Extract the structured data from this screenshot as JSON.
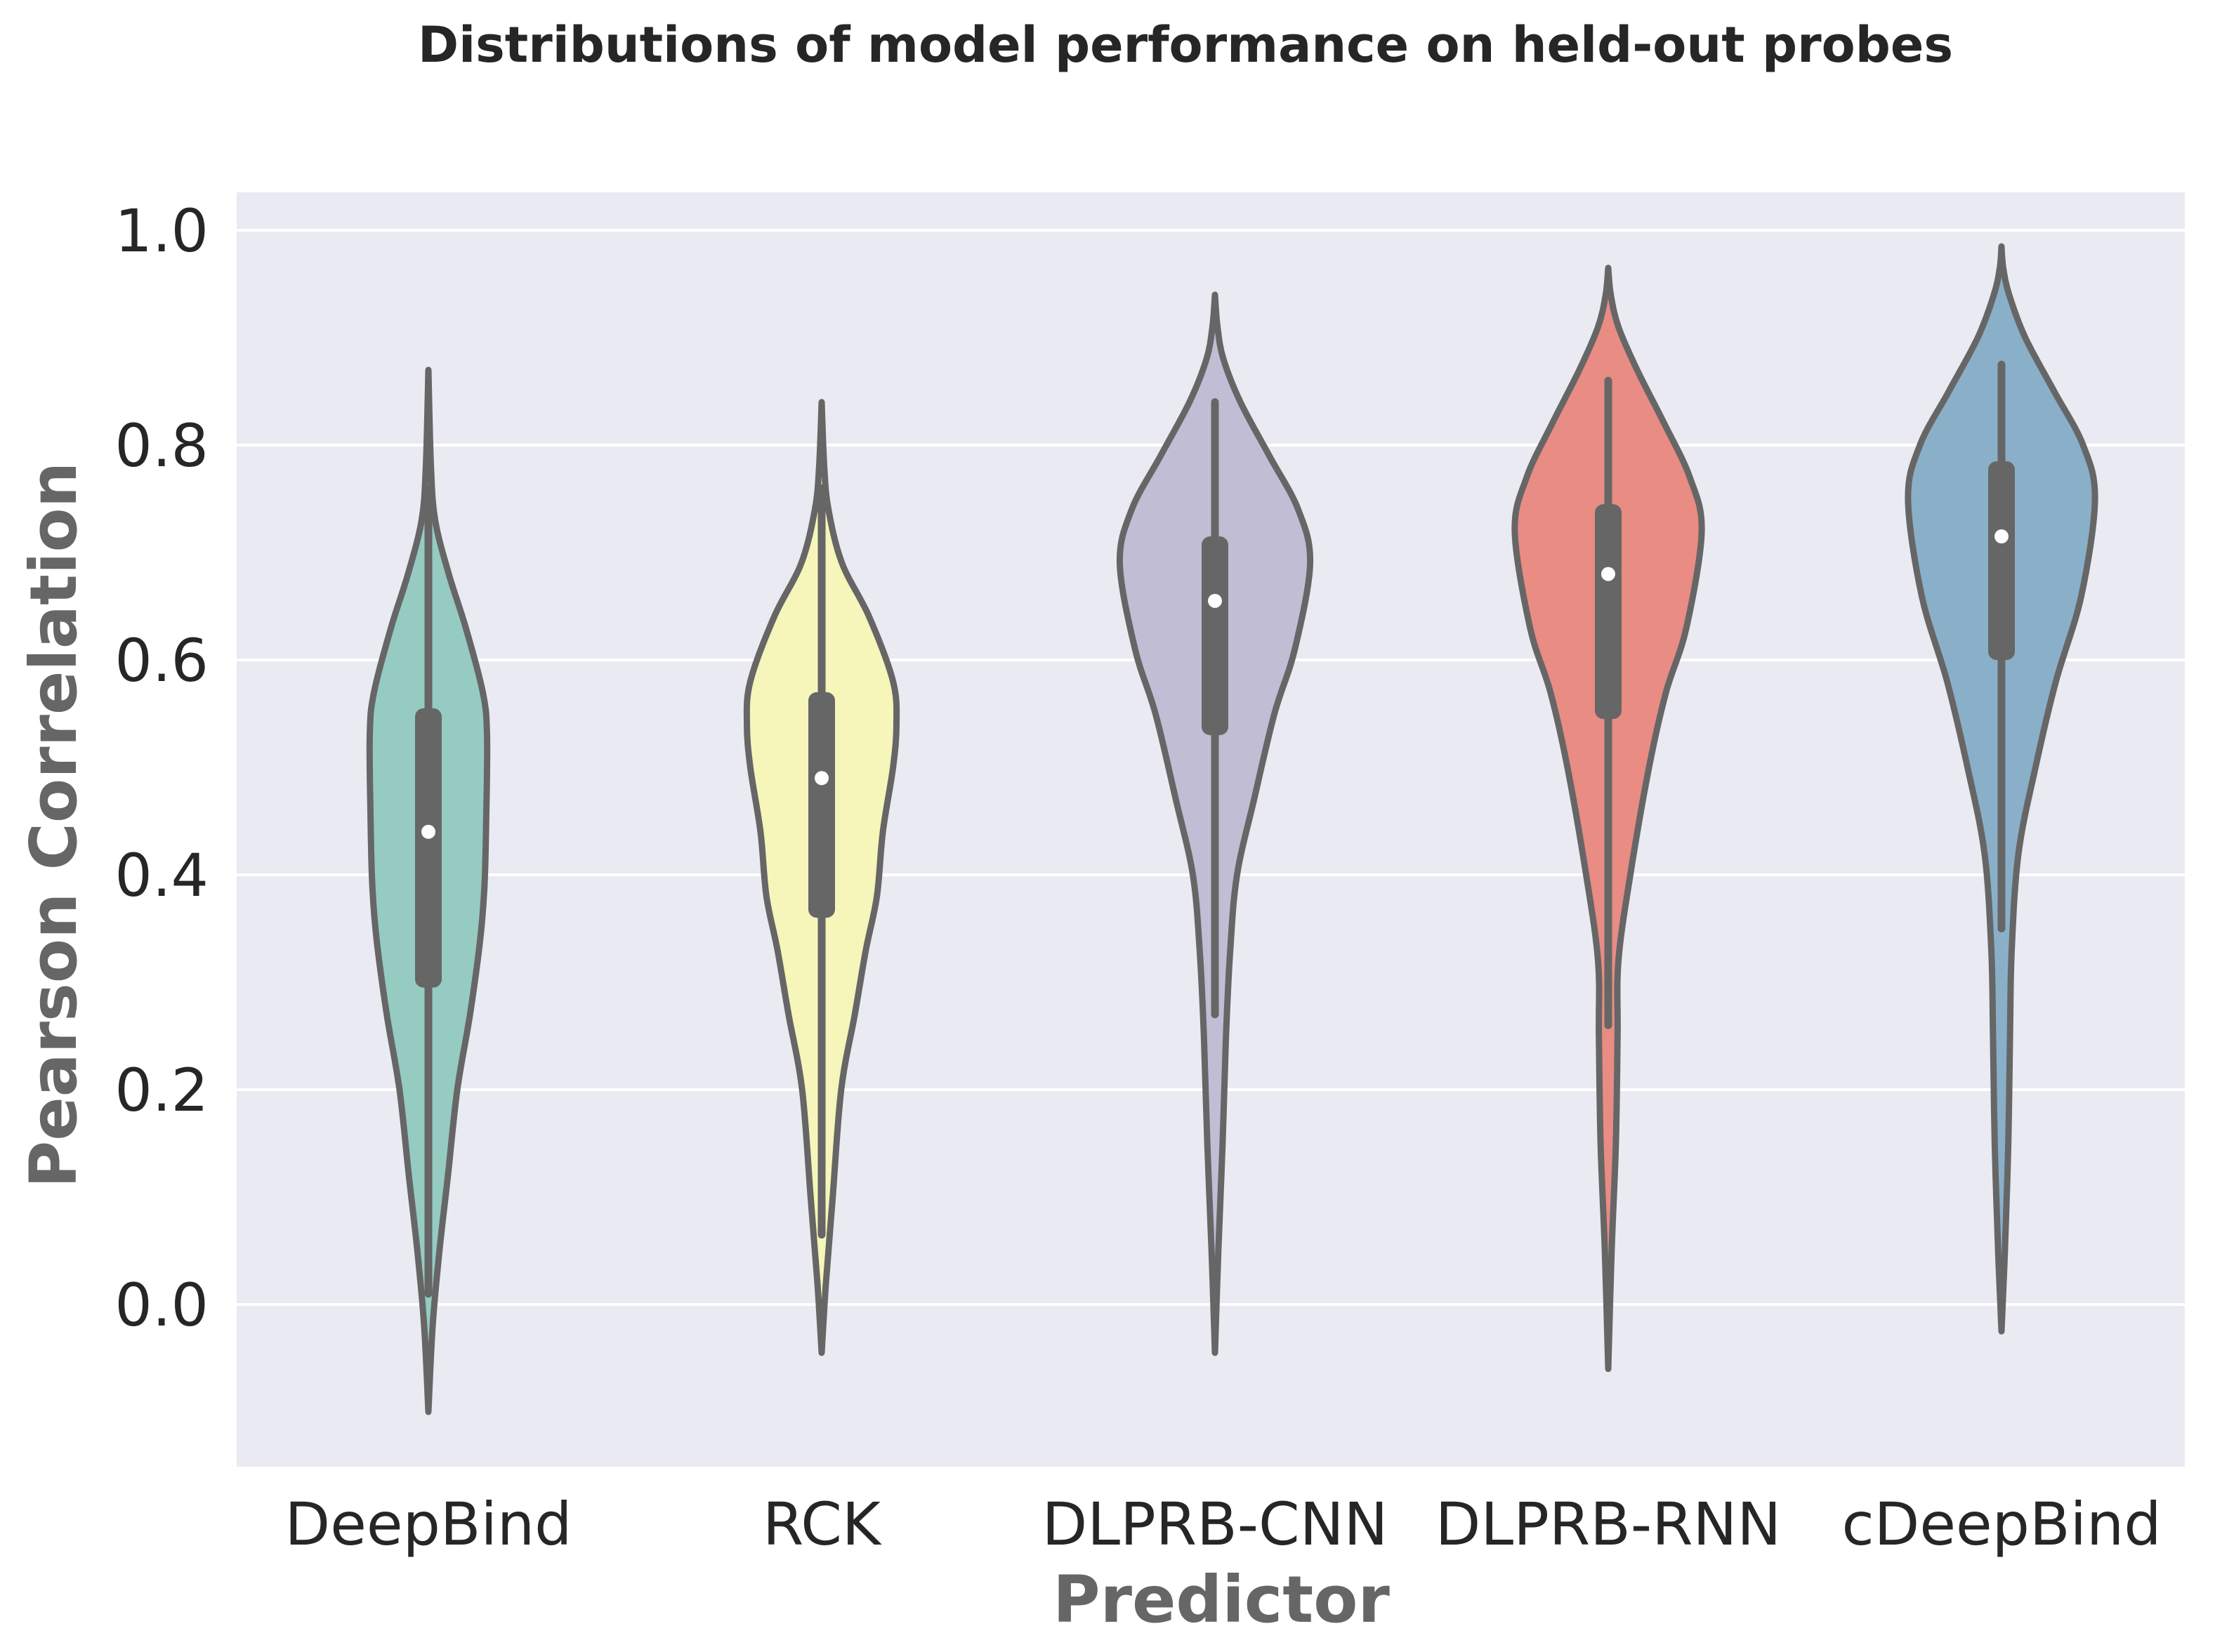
{
  "chart_data": {
    "type": "violin",
    "title": "Distributions of model performance on held-out probes",
    "xlabel": "Predictor",
    "ylabel": "Pearson Correlation",
    "ylim": [
      -0.15,
      1.04
    ],
    "yticks": [
      0.0,
      0.2,
      0.4,
      0.6,
      0.8,
      1.0
    ],
    "ytick_labels": [
      "0.0",
      "0.2",
      "0.4",
      "0.6",
      "0.8",
      "1.0"
    ],
    "grid": true,
    "colors": {
      "background": "#eaeaf2",
      "grid": "#ffffff",
      "outline": "#666666",
      "median_dot": "#ffffff"
    },
    "series": [
      {
        "name": "DeepBind",
        "color": "#96cbc1",
        "median": 0.44,
        "q1": 0.295,
        "q3": 0.555,
        "whisker_low": 0.01,
        "whisker_high": 0.76,
        "density": [
          [
            -0.1,
            0.0
          ],
          [
            -0.02,
            0.025
          ],
          [
            0.05,
            0.065
          ],
          [
            0.12,
            0.115
          ],
          [
            0.2,
            0.17
          ],
          [
            0.27,
            0.245
          ],
          [
            0.34,
            0.305
          ],
          [
            0.39,
            0.33
          ],
          [
            0.45,
            0.34
          ],
          [
            0.53,
            0.345
          ],
          [
            0.57,
            0.32
          ],
          [
            0.63,
            0.22
          ],
          [
            0.68,
            0.12
          ],
          [
            0.73,
            0.04
          ],
          [
            0.78,
            0.015
          ],
          [
            0.87,
            0.0
          ]
        ]
      },
      {
        "name": "RCK",
        "color": "#f6f5ba",
        "median": 0.49,
        "q1": 0.36,
        "q3": 0.57,
        "whisker_low": 0.065,
        "whisker_high": 0.76,
        "density": [
          [
            -0.045,
            0.0
          ],
          [
            0.02,
            0.025
          ],
          [
            0.1,
            0.065
          ],
          [
            0.2,
            0.115
          ],
          [
            0.27,
            0.195
          ],
          [
            0.33,
            0.26
          ],
          [
            0.38,
            0.325
          ],
          [
            0.44,
            0.36
          ],
          [
            0.5,
            0.42
          ],
          [
            0.54,
            0.44
          ],
          [
            0.58,
            0.42
          ],
          [
            0.64,
            0.28
          ],
          [
            0.69,
            0.12
          ],
          [
            0.74,
            0.04
          ],
          [
            0.78,
            0.015
          ],
          [
            0.84,
            0.0
          ]
        ]
      },
      {
        "name": "DLPRB-CNN",
        "color": "#c1bdd5",
        "median": 0.655,
        "q1": 0.53,
        "q3": 0.715,
        "whisker_low": 0.27,
        "whisker_high": 0.84,
        "density": [
          [
            -0.045,
            0.0
          ],
          [
            0.05,
            0.02
          ],
          [
            0.15,
            0.045
          ],
          [
            0.25,
            0.065
          ],
          [
            0.33,
            0.09
          ],
          [
            0.4,
            0.13
          ],
          [
            0.47,
            0.23
          ],
          [
            0.55,
            0.35
          ],
          [
            0.61,
            0.47
          ],
          [
            0.69,
            0.56
          ],
          [
            0.74,
            0.49
          ],
          [
            0.79,
            0.32
          ],
          [
            0.84,
            0.15
          ],
          [
            0.88,
            0.05
          ],
          [
            0.91,
            0.015
          ],
          [
            0.94,
            0.0
          ]
        ]
      },
      {
        "name": "DLPRB-RNN",
        "color": "#e98c84",
        "median": 0.68,
        "q1": 0.545,
        "q3": 0.745,
        "whisker_low": 0.26,
        "whisker_high": 0.86,
        "density": [
          [
            -0.06,
            0.0
          ],
          [
            0.05,
            0.02
          ],
          [
            0.15,
            0.045
          ],
          [
            0.25,
            0.055
          ],
          [
            0.32,
            0.06
          ],
          [
            0.4,
            0.13
          ],
          [
            0.5,
            0.24
          ],
          [
            0.57,
            0.34
          ],
          [
            0.63,
            0.46
          ],
          [
            0.72,
            0.55
          ],
          [
            0.77,
            0.48
          ],
          [
            0.82,
            0.33
          ],
          [
            0.87,
            0.17
          ],
          [
            0.91,
            0.06
          ],
          [
            0.94,
            0.015
          ],
          [
            0.965,
            0.0
          ]
        ]
      },
      {
        "name": "cDeepBind",
        "color": "#8aafc9",
        "median": 0.715,
        "q1": 0.6,
        "q3": 0.785,
        "whisker_low": 0.35,
        "whisker_high": 0.875,
        "density": [
          [
            -0.025,
            0.0
          ],
          [
            0.05,
            0.02
          ],
          [
            0.15,
            0.04
          ],
          [
            0.25,
            0.05
          ],
          [
            0.33,
            0.06
          ],
          [
            0.42,
            0.1
          ],
          [
            0.5,
            0.2
          ],
          [
            0.58,
            0.32
          ],
          [
            0.66,
            0.47
          ],
          [
            0.75,
            0.55
          ],
          [
            0.8,
            0.48
          ],
          [
            0.85,
            0.31
          ],
          [
            0.9,
            0.14
          ],
          [
            0.94,
            0.045
          ],
          [
            0.965,
            0.01
          ],
          [
            0.985,
            0.0
          ]
        ]
      }
    ]
  }
}
